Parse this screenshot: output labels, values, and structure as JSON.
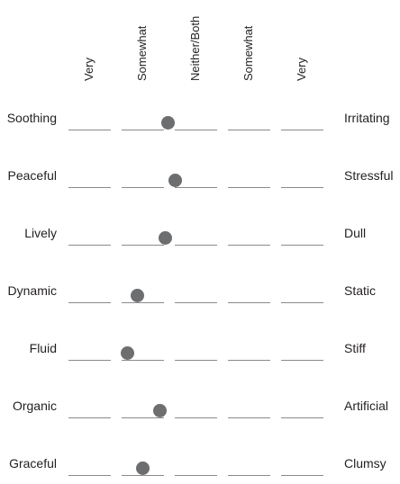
{
  "columns": [
    "Very",
    "Somewhat",
    "Neither/Both",
    "Somewhat",
    "Very"
  ],
  "rows": [
    {
      "left": "Soothing",
      "right": "Irritating",
      "rating": 0.39
    },
    {
      "left": "Peaceful",
      "right": "Stressful",
      "rating": 0.42
    },
    {
      "left": "Lively",
      "right": "Dull",
      "rating": 0.38
    },
    {
      "left": "Dynamic",
      "right": "Static",
      "rating": 0.27
    },
    {
      "left": "Fluid",
      "right": "Stiff",
      "rating": 0.23
    },
    {
      "left": "Organic",
      "right": "Artificial",
      "rating": 0.36
    },
    {
      "left": "Graceful",
      "right": "Clumsy",
      "rating": 0.29
    }
  ],
  "colors": {
    "dot": "#6d6e70",
    "line": "#8a8a8a",
    "text": "#231f20"
  }
}
